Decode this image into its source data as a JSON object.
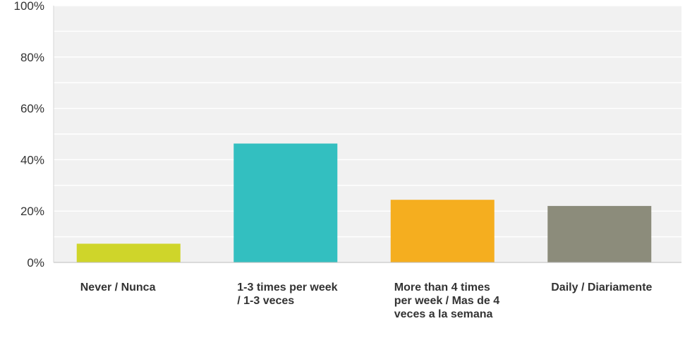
{
  "chart_data": {
    "type": "bar",
    "title": "",
    "xlabel": "",
    "ylabel": "",
    "categories": [
      "Never / Nunca",
      "1-3 times per week / 1-3 veces",
      "More than 4 times per week / Mas de 4 veces a la semana",
      "Daily / Diariamente"
    ],
    "values": [
      7.3,
      46.3,
      24.4,
      22.0
    ],
    "colors": [
      "#cfd52a",
      "#33bfc0",
      "#f5ae1f",
      "#8c8c7b"
    ],
    "ylim": [
      0,
      100
    ],
    "yticks": [
      "0%",
      "20%",
      "40%",
      "60%",
      "80%",
      "100%"
    ],
    "grid": true,
    "legend": "none"
  }
}
